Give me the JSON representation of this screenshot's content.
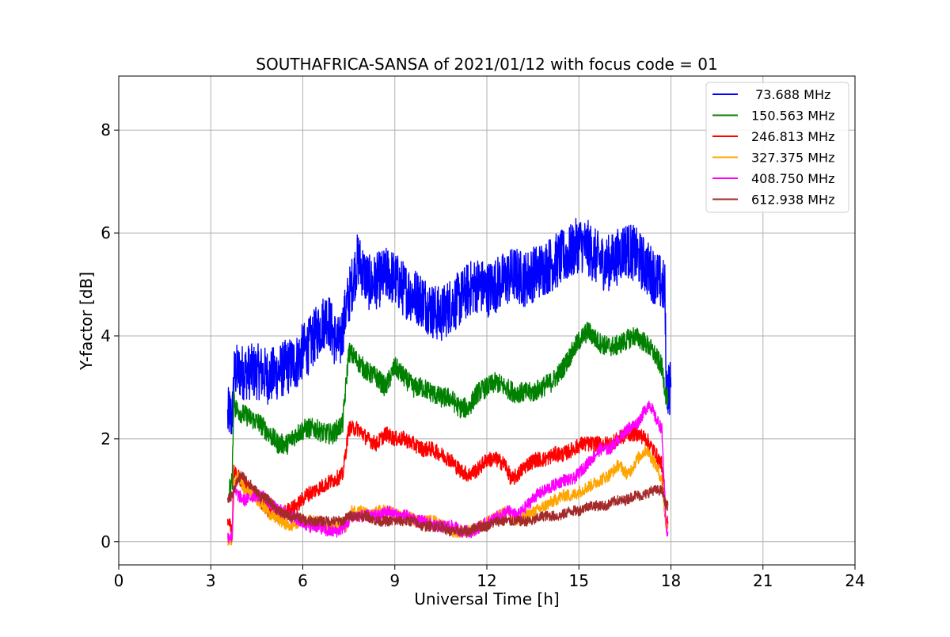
{
  "chart_data": {
    "type": "line",
    "title": "SOUTHAFRICA-SANSA of 2021/01/12 with focus code = 01",
    "xlabel": "Universal Time [h]",
    "ylabel": "Y-factor [dB]",
    "xlim": [
      0,
      24
    ],
    "ylim": [
      -0.45,
      9.05
    ],
    "xticks": [
      0,
      3,
      6,
      9,
      12,
      15,
      18,
      21,
      24
    ],
    "yticks": [
      0,
      2,
      4,
      6,
      8
    ],
    "grid": true,
    "legend_position": "top-right",
    "series": [
      {
        "name": " 73.688 MHz",
        "color": "#0000ff",
        "x": [
          3.55,
          3.6,
          3.7,
          3.75,
          3.8,
          4.0,
          4.3,
          4.6,
          4.9,
          5.2,
          5.5,
          5.8,
          6.0,
          6.2,
          6.4,
          6.6,
          6.8,
          7.0,
          7.2,
          7.4,
          7.6,
          7.8,
          8.0,
          8.2,
          8.5,
          8.8,
          9.0,
          9.3,
          9.6,
          9.9,
          10.2,
          10.5,
          10.8,
          11.1,
          11.4,
          11.7,
          12.0,
          12.3,
          12.6,
          12.9,
          13.2,
          13.5,
          13.8,
          14.1,
          14.4,
          14.7,
          15.0,
          15.3,
          15.6,
          15.9,
          16.2,
          16.5,
          16.8,
          17.1,
          17.4,
          17.7,
          17.8,
          17.85,
          17.9,
          18.0
        ],
        "y": [
          2.4,
          2.5,
          2.4,
          3.2,
          3.3,
          3.3,
          3.3,
          3.3,
          3.2,
          3.3,
          3.4,
          3.5,
          3.7,
          3.8,
          4.0,
          4.2,
          4.4,
          4.0,
          3.8,
          4.5,
          5.0,
          5.5,
          5.2,
          5.0,
          5.1,
          5.2,
          5.1,
          4.9,
          4.8,
          4.7,
          4.5,
          4.4,
          4.6,
          4.7,
          4.9,
          5.0,
          4.9,
          5.0,
          5.1,
          5.2,
          5.1,
          5.2,
          5.3,
          5.4,
          5.5,
          5.6,
          5.8,
          5.7,
          5.5,
          5.4,
          5.5,
          5.7,
          5.6,
          5.4,
          5.2,
          5.0,
          4.9,
          3.0,
          3.0,
          3.0
        ],
        "noise": 0.55
      },
      {
        "name": "150.563 MHz",
        "color": "#008000",
        "x": [
          3.6,
          3.7,
          3.75,
          3.8,
          4.0,
          4.3,
          4.6,
          4.9,
          5.2,
          5.5,
          5.8,
          6.1,
          6.4,
          6.7,
          7.0,
          7.3,
          7.5,
          7.8,
          8.1,
          8.4,
          8.7,
          9.0,
          9.3,
          9.6,
          9.9,
          10.2,
          10.5,
          10.8,
          11.1,
          11.4,
          11.7,
          12.0,
          12.3,
          12.6,
          12.9,
          13.2,
          13.5,
          13.8,
          14.1,
          14.4,
          14.7,
          15.0,
          15.3,
          15.6,
          15.9,
          16.2,
          16.5,
          16.8,
          17.1,
          17.4,
          17.7,
          17.85,
          17.9
        ],
        "y": [
          1.0,
          1.2,
          2.9,
          2.6,
          2.5,
          2.4,
          2.3,
          2.1,
          1.9,
          1.9,
          2.1,
          2.2,
          2.2,
          2.1,
          2.1,
          2.3,
          3.7,
          3.5,
          3.3,
          3.2,
          3.0,
          3.4,
          3.2,
          3.0,
          3.0,
          2.9,
          2.8,
          2.8,
          2.6,
          2.6,
          2.9,
          3.0,
          3.1,
          3.0,
          2.9,
          2.9,
          2.9,
          3.0,
          3.1,
          3.3,
          3.6,
          3.9,
          4.1,
          3.9,
          3.8,
          3.8,
          3.9,
          4.0,
          3.9,
          3.7,
          3.4,
          2.8,
          2.8
        ],
        "noise": 0.2
      },
      {
        "name": "246.813 MHz",
        "color": "#ff0000",
        "x": [
          3.55,
          3.7,
          3.75,
          3.8,
          4.0,
          4.3,
          4.6,
          4.9,
          5.2,
          5.5,
          5.8,
          6.1,
          6.4,
          6.7,
          7.0,
          7.3,
          7.5,
          7.8,
          8.1,
          8.4,
          8.7,
          9.0,
          9.3,
          9.6,
          9.9,
          10.2,
          10.5,
          10.8,
          11.1,
          11.4,
          11.7,
          12.0,
          12.3,
          12.6,
          12.8,
          13.0,
          13.3,
          13.6,
          13.9,
          14.2,
          14.5,
          14.8,
          15.1,
          15.4,
          15.7,
          16.0,
          16.3,
          16.6,
          16.9,
          17.2,
          17.5,
          17.7,
          17.8,
          17.9
        ],
        "y": [
          0.3,
          0.3,
          1.4,
          1.3,
          1.2,
          1.0,
          0.8,
          0.6,
          0.5,
          0.6,
          0.7,
          0.9,
          1.0,
          1.1,
          1.2,
          1.3,
          2.2,
          2.2,
          2.0,
          1.9,
          2.1,
          2.0,
          2.0,
          1.9,
          1.8,
          1.8,
          1.7,
          1.6,
          1.4,
          1.3,
          1.4,
          1.6,
          1.6,
          1.5,
          1.2,
          1.3,
          1.5,
          1.6,
          1.6,
          1.7,
          1.7,
          1.8,
          1.9,
          1.9,
          1.9,
          1.9,
          2.0,
          2.1,
          2.1,
          2.0,
          1.7,
          1.5,
          0.5,
          0.4
        ],
        "noise": 0.15
      },
      {
        "name": "327.375 MHz",
        "color": "#ffa500",
        "x": [
          3.55,
          3.7,
          3.75,
          3.9,
          4.1,
          4.4,
          4.7,
          5.0,
          5.3,
          5.6,
          5.9,
          6.2,
          6.5,
          6.8,
          7.1,
          7.4,
          7.6,
          7.9,
          8.2,
          8.5,
          8.8,
          9.1,
          9.4,
          9.7,
          10.0,
          10.3,
          10.6,
          10.9,
          11.2,
          11.5,
          11.8,
          12.1,
          12.4,
          12.7,
          13.0,
          13.3,
          13.6,
          13.9,
          14.2,
          14.5,
          14.8,
          15.1,
          15.4,
          15.7,
          16.0,
          16.3,
          16.6,
          16.9,
          17.2,
          17.5,
          17.7,
          17.85,
          17.9
        ],
        "y": [
          0.05,
          0.05,
          1.1,
          1.3,
          1.0,
          0.9,
          0.7,
          0.5,
          0.4,
          0.3,
          0.4,
          0.4,
          0.4,
          0.3,
          0.3,
          0.3,
          0.6,
          0.6,
          0.5,
          0.6,
          0.6,
          0.5,
          0.5,
          0.4,
          0.4,
          0.4,
          0.3,
          0.2,
          0.2,
          0.2,
          0.3,
          0.4,
          0.5,
          0.6,
          0.4,
          0.5,
          0.6,
          0.7,
          0.8,
          0.9,
          0.9,
          1.0,
          1.1,
          1.2,
          1.3,
          1.5,
          1.3,
          1.6,
          1.8,
          1.5,
          1.2,
          0.3,
          0.3
        ],
        "noise": 0.12
      },
      {
        "name": "408.750 MHz",
        "color": "#ff00ff",
        "x": [
          3.55,
          3.7,
          3.75,
          3.9,
          4.1,
          4.4,
          4.7,
          5.0,
          5.3,
          5.6,
          5.9,
          6.2,
          6.5,
          6.8,
          7.1,
          7.4,
          7.6,
          7.9,
          8.2,
          8.5,
          8.8,
          9.1,
          9.4,
          9.7,
          10.0,
          10.3,
          10.6,
          10.9,
          11.2,
          11.5,
          11.8,
          12.1,
          12.4,
          12.7,
          13.0,
          13.3,
          13.6,
          13.9,
          14.2,
          14.5,
          14.8,
          15.1,
          15.4,
          15.7,
          16.0,
          16.3,
          16.6,
          16.9,
          17.1,
          17.3,
          17.5,
          17.7,
          17.85,
          17.9
        ],
        "y": [
          0.1,
          0.1,
          1.0,
          0.9,
          0.8,
          0.9,
          0.9,
          0.7,
          0.6,
          0.5,
          0.4,
          0.3,
          0.3,
          0.2,
          0.2,
          0.3,
          0.5,
          0.5,
          0.5,
          0.5,
          0.6,
          0.5,
          0.5,
          0.4,
          0.4,
          0.3,
          0.3,
          0.3,
          0.2,
          0.2,
          0.3,
          0.4,
          0.5,
          0.6,
          0.5,
          0.7,
          0.9,
          1.0,
          1.1,
          1.2,
          1.2,
          1.4,
          1.6,
          1.8,
          1.8,
          2.0,
          2.2,
          2.3,
          2.5,
          2.7,
          2.4,
          2.2,
          0.2,
          0.2
        ],
        "noise": 0.12
      },
      {
        "name": "612.938 MHz",
        "color": "#a52a2a",
        "x": [
          3.55,
          3.7,
          3.8,
          4.0,
          4.3,
          4.6,
          4.9,
          5.2,
          5.5,
          5.8,
          6.1,
          6.4,
          6.7,
          7.0,
          7.3,
          7.5,
          7.8,
          8.1,
          8.4,
          8.7,
          9.0,
          9.3,
          9.6,
          9.9,
          10.2,
          10.5,
          10.8,
          11.1,
          11.4,
          11.7,
          12.0,
          12.3,
          12.6,
          12.9,
          13.2,
          13.5,
          13.8,
          14.1,
          14.4,
          14.7,
          15.0,
          15.3,
          15.6,
          15.9,
          16.2,
          16.5,
          16.8,
          17.1,
          17.4,
          17.7,
          17.85,
          17.9
        ],
        "y": [
          0.8,
          0.9,
          1.1,
          1.3,
          1.1,
          0.9,
          0.8,
          0.6,
          0.5,
          0.5,
          0.4,
          0.4,
          0.4,
          0.4,
          0.4,
          0.5,
          0.5,
          0.5,
          0.4,
          0.4,
          0.4,
          0.4,
          0.4,
          0.3,
          0.3,
          0.3,
          0.2,
          0.2,
          0.2,
          0.3,
          0.3,
          0.4,
          0.4,
          0.4,
          0.4,
          0.4,
          0.5,
          0.5,
          0.5,
          0.6,
          0.6,
          0.7,
          0.7,
          0.7,
          0.8,
          0.8,
          0.9,
          0.9,
          1.0,
          1.0,
          0.7,
          0.7
        ],
        "noise": 0.1
      }
    ]
  }
}
